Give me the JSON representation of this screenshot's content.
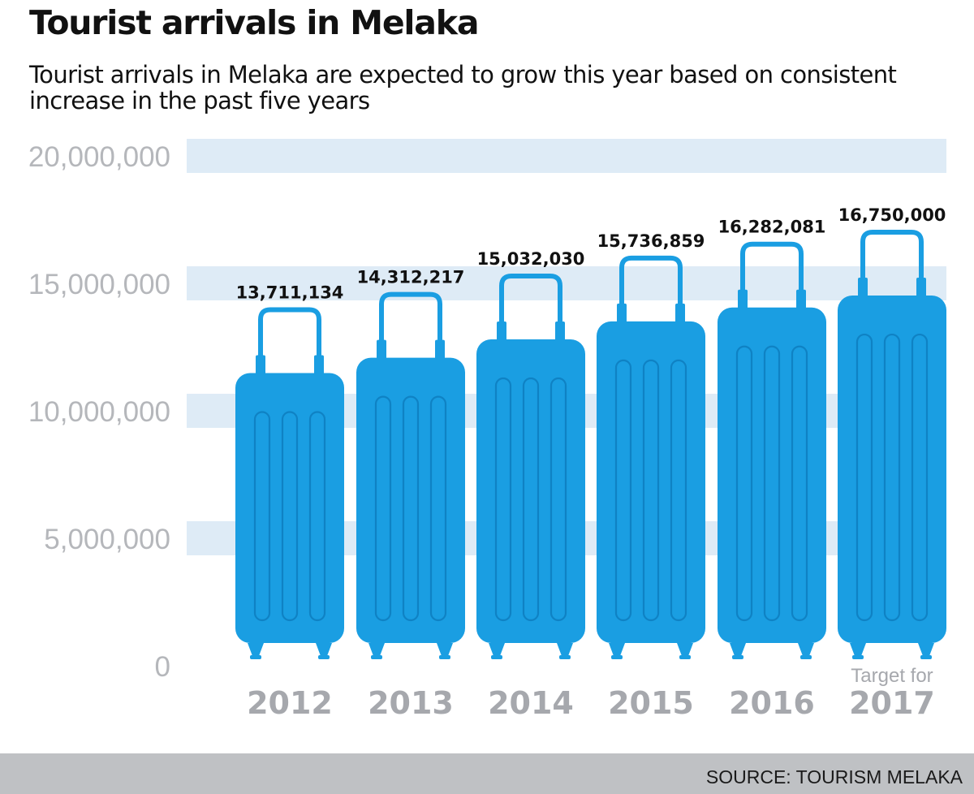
{
  "title": "Tourist arrivals in Melaka",
  "subtitle": "Tourist arrivals in Melaka are expected to grow this year based on consistent increase in the past five years",
  "source": "SOURCE: TOURISM MELAKA",
  "colors": {
    "suitcase": "#1a9ee2",
    "suitcase_detail": "#0f82c4",
    "grid_band": "#deebf6",
    "tick_text": "#b5b7bb",
    "year_text": "#a6a8ad"
  },
  "icons": {
    "bar_mark": "suitcase-icon"
  },
  "chart_data": {
    "type": "bar",
    "title": "Tourist arrivals in Melaka",
    "categories": [
      "2012",
      "2013",
      "2014",
      "2015",
      "2016",
      "2017"
    ],
    "category_notes": [
      "",
      "",
      "",
      "",
      "",
      "Target for"
    ],
    "values": [
      13711134,
      14312217,
      15032030,
      15736859,
      16282081,
      16750000
    ],
    "value_labels": [
      "13,711,134",
      "14,312,217",
      "15,032,030",
      "15,736,859",
      "16,282,081",
      "16,750,000"
    ],
    "ylim": [
      0,
      20000000
    ],
    "yticks": [
      0,
      5000000,
      10000000,
      15000000,
      20000000
    ],
    "ytick_labels": [
      "0",
      "5,000,000",
      "10,000,000",
      "15,000,000",
      "20,000,000"
    ],
    "xlabel": "",
    "ylabel": "",
    "grid": true,
    "legend": "none"
  }
}
